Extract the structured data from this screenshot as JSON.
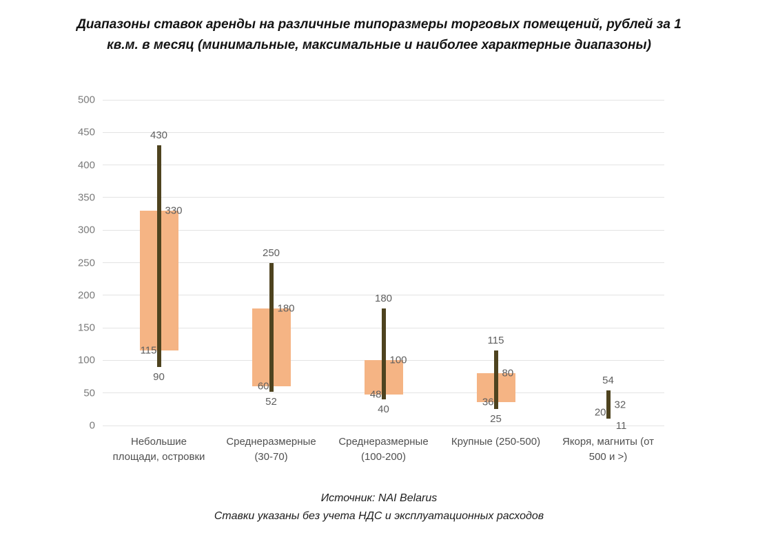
{
  "title": {
    "line1": "Диапазоны ставок аренды на различные типоразмеры торговых помещений, рублей за 1",
    "line2": "кв.м. в месяц (минимальные, максимальные и наиболее характерные диапазоны)"
  },
  "footer": {
    "line1": "Источник: NAI Belarus",
    "line2": "Ставки указаны без учета НДС и эксплуатационных расходов"
  },
  "chart_data": {
    "type": "range-bar",
    "title": "Диапазоны ставок аренды на различные типоразмеры торговых помещений, рублей за 1 кв.м. в месяц (минимальные, максимальные и наиболее характерные диапазоны)",
    "xlabel": "",
    "ylabel": "",
    "units": "рублей за 1 кв.м. в месяц",
    "ylim": [
      0,
      500
    ],
    "ytick_step": 50,
    "yticks": [
      0,
      50,
      100,
      150,
      200,
      250,
      300,
      350,
      400,
      450,
      500
    ],
    "grid": true,
    "legend": false,
    "colors": {
      "box": "#F5B484",
      "line": "#4E431F",
      "gridline": "#E3E3E3",
      "tick_label": "#7A7A7A",
      "data_label": "#5E5E5E",
      "category_label": "#4F4F4F",
      "background": "#FFFFFF"
    },
    "categories": [
      "Небольшие площади, островки",
      "Среднеразмерные (30-70)",
      "Среднеразмерные (100-200)",
      "Крупные (250-500)",
      "Якоря, магниты (от 500 и >)"
    ],
    "points": [
      {
        "category": "Небольшие площади, островки",
        "category_lines": [
          "Небольшие",
          "площади, островки"
        ],
        "min": 90,
        "max": 430,
        "typical_low": 115,
        "typical_high": 330,
        "box_drawn": true
      },
      {
        "category": "Среднеразмерные (30-70)",
        "category_lines": [
          "Среднеразмерные",
          "(30-70)"
        ],
        "min": 52,
        "max": 250,
        "typical_low": 60,
        "typical_high": 180,
        "box_drawn": true
      },
      {
        "category": "Среднеразмерные (100-200)",
        "category_lines": [
          "Среднеразмерные",
          "(100-200)"
        ],
        "min": 40,
        "max": 180,
        "typical_low": 48,
        "typical_high": 100,
        "box_drawn": true
      },
      {
        "category": "Крупные (250-500)",
        "category_lines": [
          "Крупные (250-500)"
        ],
        "min": 25,
        "max": 115,
        "typical_low": 36,
        "typical_high": 80,
        "box_drawn": true
      },
      {
        "category": "Якоря, магниты (от 500 и >)",
        "category_lines": [
          "Якоря, магниты (от",
          "500 и >)"
        ],
        "min": 11,
        "max": 54,
        "typical_low": 20,
        "typical_high": 32,
        "box_drawn": false
      }
    ]
  }
}
